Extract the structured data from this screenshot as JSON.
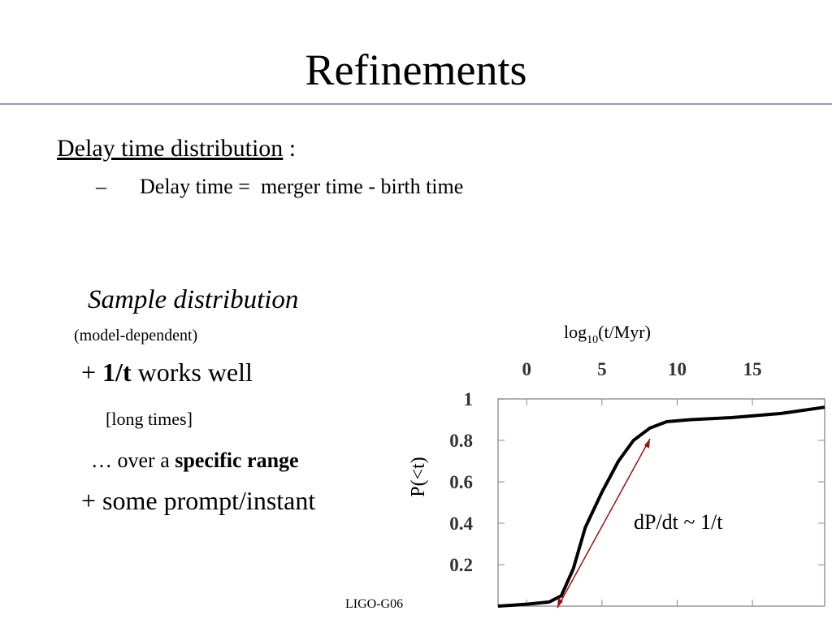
{
  "header": {
    "title": "Refinements"
  },
  "body": {
    "heading": {
      "text": "Delay time distribution",
      "suffix": " :"
    },
    "bullet": {
      "marker": "–",
      "text": "Delay time =  merger time - birth time"
    },
    "sample": {
      "title": "Sample distribution",
      "note": "(model-dependent)"
    },
    "points": [
      {
        "prefix": "+ ",
        "bold": "1/t",
        "suffix": " works well"
      },
      {
        "text": "[long times]"
      },
      {
        "prefix": "… over a ",
        "bold": "specific range"
      },
      {
        "text": "+ some prompt/instant"
      }
    ]
  },
  "chart": {
    "type": "line",
    "x_label": {
      "main": "log",
      "sub": "10",
      "tail": "(t/Myr)"
    },
    "y_label": "P(<t)",
    "annotation": "dP/dt ~ 1/t",
    "xlim": [
      -1.9,
      19.8
    ],
    "xticks": [
      0,
      5,
      10,
      15
    ],
    "ylim": [
      0,
      1
    ],
    "yticks": [
      0.2,
      0.4,
      0.6,
      0.8,
      1
    ],
    "color": "#000000",
    "x": [
      -1.9,
      0.1,
      1.5,
      2.3,
      3.1,
      3.9,
      5.0,
      6.1,
      7.1,
      8.2,
      9.3,
      10.9,
      13.6,
      16.9,
      19.8
    ],
    "values": [
      0,
      0.01,
      0.02,
      0.05,
      0.18,
      0.38,
      0.55,
      0.7,
      0.8,
      0.86,
      0.89,
      0.9,
      0.91,
      0.93,
      0.96
    ]
  },
  "footer": {
    "id": "LIGO-G06"
  }
}
